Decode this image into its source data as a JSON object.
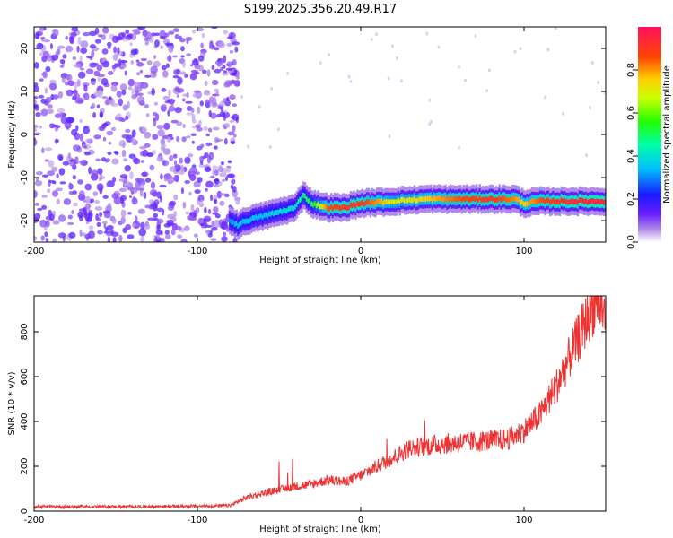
{
  "figure": {
    "title": "S199.2025.356.20.49.R17"
  },
  "chart_data": [
    {
      "type": "heatmap",
      "xlabel": "Height of straight line (km)",
      "ylabel": "Frequency (Hz)",
      "xlim": [
        -200,
        150
      ],
      "ylim": [
        -25,
        25
      ],
      "x_ticks": [
        -200,
        -100,
        0,
        100
      ],
      "y_ticks": [
        -20,
        -10,
        0,
        10,
        20
      ],
      "grid": false,
      "colorbar": {
        "label": "Normalized spectral amplitude",
        "range": [
          0,
          1
        ],
        "ticks": [
          "0.0",
          "0.2",
          "0.4",
          "0.6",
          "0.8"
        ]
      },
      "ridge": {
        "description_values": "dominant frequency vs height",
        "x": [
          -80,
          -75,
          -70,
          -60,
          -50,
          -40,
          -35,
          -30,
          -20,
          -10,
          0,
          20,
          40,
          60,
          80,
          95,
          100,
          110,
          120,
          140,
          150
        ],
        "y": [
          -20,
          -21,
          -20,
          -19,
          -18,
          -17,
          -14,
          -16,
          -17,
          -17,
          -16,
          -15.5,
          -15,
          -15,
          -15,
          -15,
          -16,
          -15.5,
          -15.5,
          -15.5,
          -15.5
        ],
        "amplitude": [
          0.3,
          0.35,
          0.35,
          0.35,
          0.4,
          0.4,
          0.5,
          0.5,
          0.85,
          0.9,
          0.9,
          0.7,
          0.75,
          0.85,
          0.9,
          0.8,
          0.75,
          0.85,
          0.9,
          0.95,
          0.95
        ]
      },
      "noise_region_x": [
        -200,
        -75
      ]
    },
    {
      "type": "line",
      "xlabel": "Height of straight line (km)",
      "ylabel": "SNR (10 * v/v)",
      "xlim": [
        -200,
        150
      ],
      "ylim": [
        0,
        960
      ],
      "x_ticks": [
        -200,
        -100,
        0,
        100
      ],
      "y_ticks": [
        0,
        200,
        400,
        600,
        800
      ],
      "grid": false,
      "series": [
        {
          "color": "#ee3333",
          "x": [
            -200,
            -150,
            -100,
            -80,
            -70,
            -60,
            -50,
            -40,
            -30,
            -20,
            -10,
            0,
            10,
            20,
            30,
            40,
            50,
            60,
            70,
            80,
            90,
            100,
            110,
            120,
            130,
            140,
            145,
            150
          ],
          "y": [
            20,
            20,
            22,
            25,
            60,
            80,
            95,
            110,
            120,
            140,
            130,
            160,
            200,
            240,
            280,
            290,
            300,
            305,
            310,
            315,
            320,
            360,
            430,
            560,
            720,
            880,
            950,
            860
          ]
        }
      ]
    }
  ]
}
